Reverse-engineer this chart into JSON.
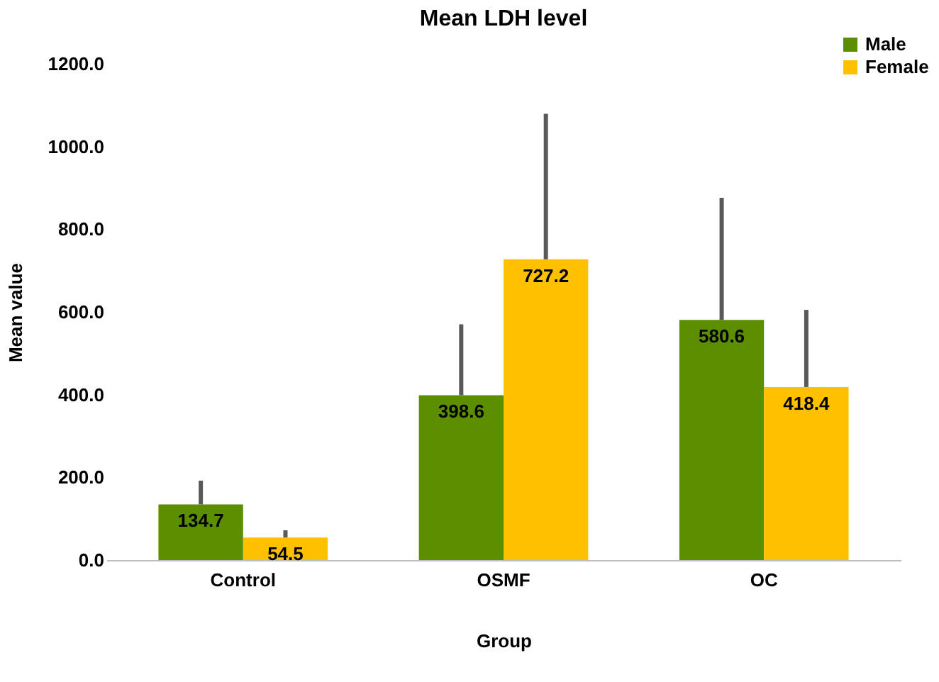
{
  "chart_data": {
    "type": "bar",
    "title": "Mean LDH level",
    "xlabel": "Group",
    "ylabel": "Mean value",
    "categories": [
      "Control",
      "OSMF",
      "OC"
    ],
    "series": [
      {
        "name": "Male",
        "color": "#5b8f00",
        "values": [
          134.7,
          398.6,
          580.6
        ],
        "errors": [
          [
            134.7,
            192
          ],
          [
            398.6,
            570
          ],
          [
            580.6,
            876
          ]
        ]
      },
      {
        "name": "Female",
        "color": "#ffc000",
        "values": [
          54.5,
          727.2,
          418.4
        ],
        "errors": [
          [
            54.5,
            72
          ],
          [
            727.2,
            1079
          ],
          [
            418.4,
            605
          ]
        ]
      }
    ],
    "ylim": [
      0,
      1200
    ],
    "yticks": [
      {
        "value": 0,
        "label": "0.0"
      },
      {
        "value": 200,
        "label": "200.0"
      },
      {
        "value": 400,
        "label": "400.0"
      },
      {
        "value": 600,
        "label": "600.0"
      },
      {
        "value": 800,
        "label": "800.0"
      },
      {
        "value": 1000,
        "label": "1000.0"
      },
      {
        "value": 1200,
        "label": "1200.0"
      }
    ],
    "data_labels": true,
    "legend": "top right",
    "grid": false
  }
}
